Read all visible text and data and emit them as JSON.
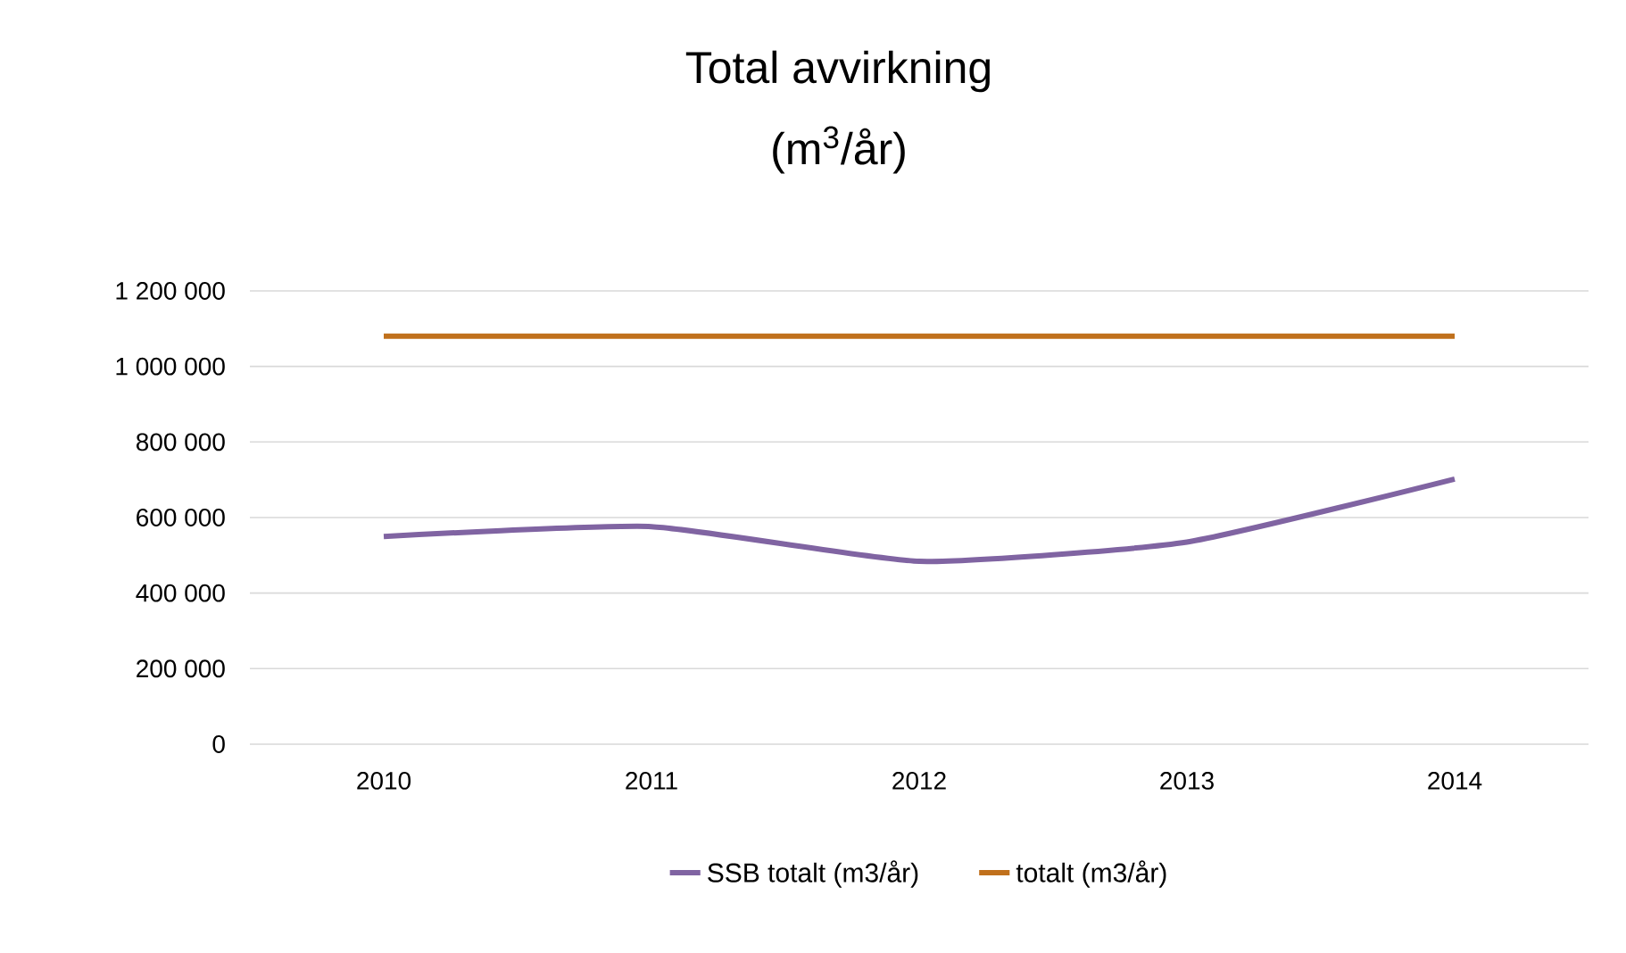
{
  "chart_data": {
    "type": "line",
    "title": "Total avvirkning",
    "subtitle": "(m$^{3}$/år)",
    "categories": [
      "2010",
      "2011",
      "2012",
      "2013",
      "2014"
    ],
    "series": [
      {
        "name": "SSB totalt (m3/år)",
        "color": "#8064a2",
        "values": [
          550000,
          576000,
          484000,
          535000,
          702000
        ]
      },
      {
        "name": "totalt (m3/år)",
        "color": "#c0701c",
        "values": [
          1080000,
          1080000,
          1080000,
          1080000,
          1080000
        ]
      }
    ],
    "ylim": [
      0,
      1200000
    ],
    "yticks": [
      0,
      {
        "value": 200000,
        "label": "200 000"
      },
      {
        "value": 400000,
        "label": "400 000"
      },
      {
        "value": 600000,
        "label": "600 000"
      },
      {
        "value": 800000,
        "label": "800 000"
      },
      {
        "value": 1000000,
        "label": "1 000 000"
      },
      {
        "value": 1200000,
        "label": "1 200 000"
      }
    ],
    "grid": "y",
    "legend": "bottom",
    "marker": "none",
    "line_style": "solid"
  }
}
